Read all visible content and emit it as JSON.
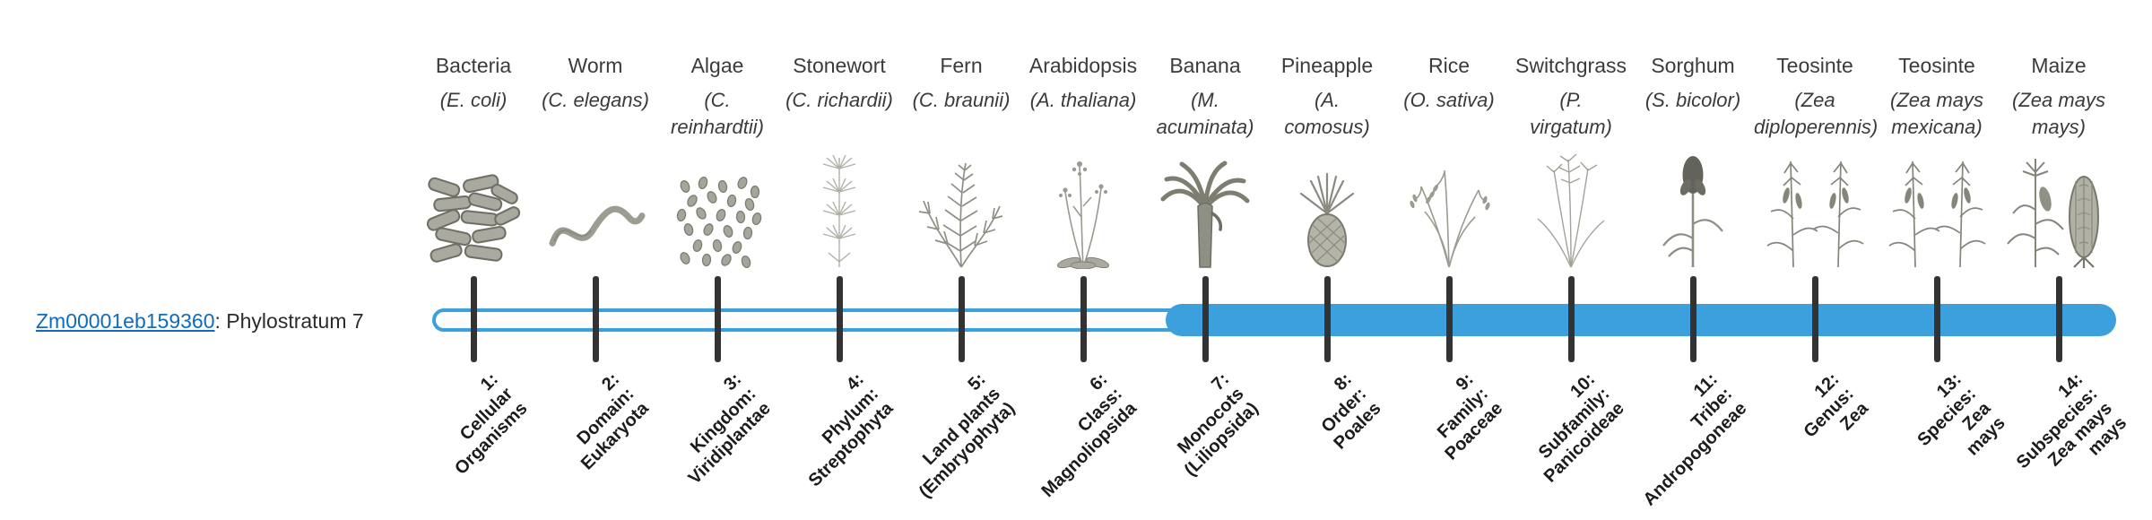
{
  "colors": {
    "bar_blue": "#3BA0DB",
    "link_blue": "#0F6CBD",
    "tick": "#333333"
  },
  "gene": {
    "id": "Zm00001eb159360",
    "suffix": ": Phylostratum 7"
  },
  "bar": {
    "total_strata": 14,
    "gene_stratum": 7,
    "filled_from_stratum": 7,
    "filled_to_stratum": 14
  },
  "organisms": [
    {
      "name": "Bacteria",
      "scientific": "(E. coli)",
      "icon": "bacteria",
      "stratum_label": "1:\nCellular\nOrganisms"
    },
    {
      "name": "Worm",
      "scientific": "(C. elegans)",
      "icon": "worm",
      "stratum_label": "2:\nDomain:\nEukaryota"
    },
    {
      "name": "Algae",
      "scientific": "(C.\nreinhardtii)",
      "icon": "algae",
      "stratum_label": "3:\nKingdom:\nViridiplantae"
    },
    {
      "name": "Stonewort",
      "scientific": "(C. richardii)",
      "icon": "stonewort",
      "stratum_label": "4:\nPhylum:\nStreptophyta"
    },
    {
      "name": "Fern",
      "scientific": "(C. braunii)",
      "icon": "fern",
      "stratum_label": "5:\nLand plants\n(Embryophyta)"
    },
    {
      "name": "Arabidopsis",
      "scientific": "(A. thaliana)",
      "icon": "arabidopsis",
      "stratum_label": "6:\nClass:\nMagnoliopsida"
    },
    {
      "name": "Banana",
      "scientific": "(M.\nacuminata)",
      "icon": "banana",
      "stratum_label": "7:\nMonocots\n(Liliopsida)"
    },
    {
      "name": "Pineapple",
      "scientific": "(A.\ncomosus)",
      "icon": "pineapple",
      "stratum_label": "8:\nOrder:\nPoales"
    },
    {
      "name": "Rice",
      "scientific": "(O. sativa)",
      "icon": "rice",
      "stratum_label": "9:\nFamily:\nPoaceae"
    },
    {
      "name": "Switchgrass",
      "scientific": "(P.\nvirgatum)",
      "icon": "switchgrass",
      "stratum_label": "10:\nSubfamily:\nPanicoideae"
    },
    {
      "name": "Sorghum",
      "scientific": "(S. bicolor)",
      "icon": "sorghum",
      "stratum_label": "11:\nTribe:\nAndropogoneae"
    },
    {
      "name": "Teosinte",
      "scientific": "(Zea\ndiploperennis)",
      "icon": "teosinte",
      "stratum_label": "12:\nGenus:\nZea"
    },
    {
      "name": "Teosinte",
      "scientific": "(Zea mays\nmexicana)",
      "icon": "teosinte",
      "stratum_label": "13:\nSpecies:\nZea\nmays"
    },
    {
      "name": "Maize",
      "scientific": "(Zea mays\nmays)",
      "icon": "maize",
      "stratum_label": "14:\nSubspecies:\nZea mays\nmays"
    }
  ]
}
